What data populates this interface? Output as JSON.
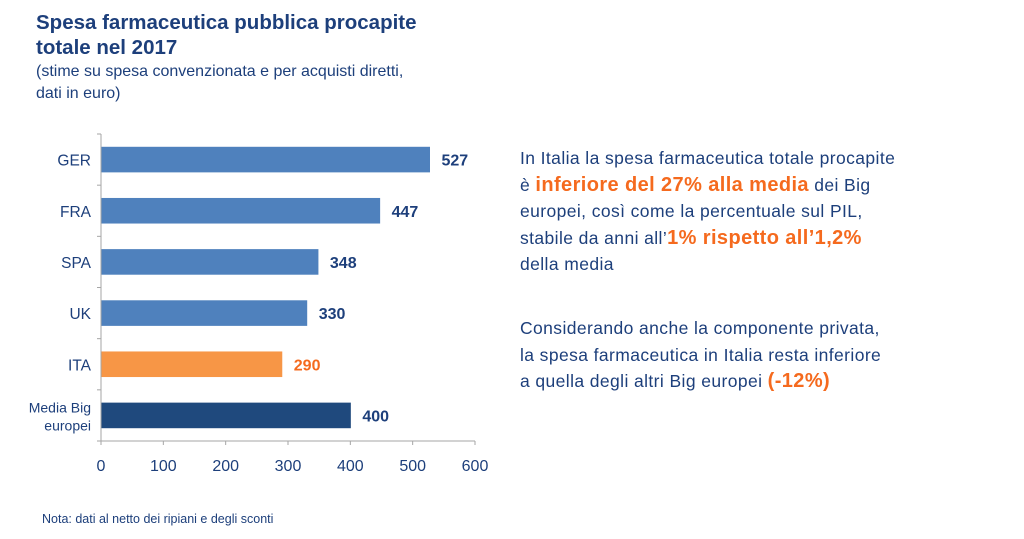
{
  "header": {
    "title_line1": "Spesa farmaceutica pubblica procapite",
    "title_line2": "totale nel 2017",
    "subtitle_line1": "(stime su spesa convenzionata e per acquisti diretti,",
    "subtitle_line2": "dati in euro)"
  },
  "chart_data": {
    "type": "bar",
    "orientation": "horizontal",
    "title": "Spesa farmaceutica pubblica procapite totale nel 2017",
    "subtitle": "(stime su spesa convenzionata e per acquisti diretti, dati in euro)",
    "xlabel": "",
    "ylabel": "",
    "categories": [
      "GER",
      "FRA",
      "SPA",
      "UK",
      "ITA",
      "Media Big europei"
    ],
    "category_lines": [
      [
        "GER"
      ],
      [
        "FRA"
      ],
      [
        "SPA"
      ],
      [
        "UK"
      ],
      [
        "ITA"
      ],
      [
        "Media Big",
        "europei"
      ]
    ],
    "values": [
      527,
      447,
      348,
      330,
      290,
      400
    ],
    "data_labels": [
      "527",
      "447",
      "348",
      "330",
      "290",
      "400"
    ],
    "bar_colors": [
      "#4f81bd",
      "#4f81bd",
      "#4f81bd",
      "#4f81bd",
      "#f79646",
      "#1f497d"
    ],
    "label_colors": [
      "#1d3f7b",
      "#1d3f7b",
      "#1d3f7b",
      "#1d3f7b",
      "#f56a1e",
      "#1d3f7b"
    ],
    "xlim": [
      0,
      600
    ],
    "xticks": [
      0,
      100,
      200,
      300,
      400,
      500,
      600
    ],
    "grid": false,
    "legend": "none"
  },
  "commentary": {
    "p1": {
      "line1": "In Italia la spesa farmaceutica totale procapite",
      "line2_pre": "è ",
      "line2_hl": "inferiore del 27% alla media",
      "line2_post": " dei Big",
      "line3": "europei, così come la percentuale sul PIL,",
      "line4_pre": "stabile da anni all’",
      "line4_hl": "1% rispetto all’1,2%",
      "line5": "della media"
    },
    "p2": {
      "line1": "Considerando anche la componente privata,",
      "line2": "la spesa farmaceutica in Italia resta inferiore",
      "line3_pre": "a quella degli altri Big europei ",
      "line3_hl": "(-12%)"
    }
  },
  "footer": {
    "note": "Nota: dati al netto dei ripiani e degli sconti"
  }
}
